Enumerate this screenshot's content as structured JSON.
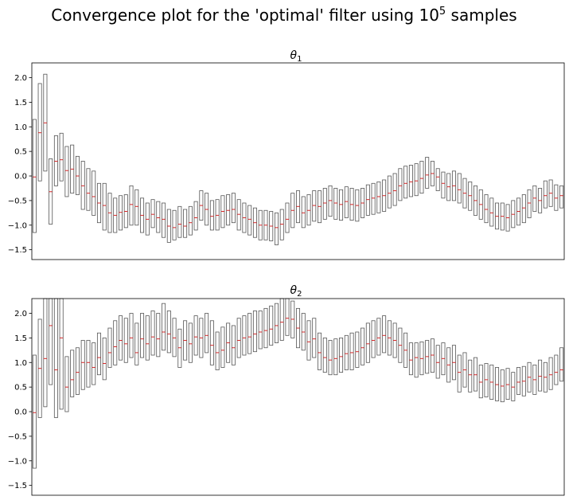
{
  "figure": {
    "title_text": "Convergence plot for the 'optimal' filter using 10",
    "title_sup": "5",
    "title_tail": " samples"
  },
  "chart_data": [
    {
      "type": "box",
      "title": "θ",
      "title_sub": "1",
      "xlabel": "",
      "ylabel": "",
      "ylim": [
        -1.7,
        2.3
      ],
      "yticks": [
        -1.5,
        -1.0,
        -0.5,
        0.0,
        0.5,
        1.0,
        1.5,
        2.0
      ],
      "ytick_labels": [
        "−1.5",
        "−1.0",
        "−0.5",
        "0.0",
        "0.5",
        "1.0",
        "1.5",
        "2.0"
      ],
      "grid": false,
      "medians": [
        -0.02,
        0.88,
        1.08,
        -0.32,
        0.3,
        0.33,
        0.11,
        0.14,
        0.0,
        -0.2,
        -0.35,
        -0.42,
        -0.55,
        -0.6,
        -0.75,
        -0.8,
        -0.74,
        -0.72,
        -0.58,
        -0.62,
        -0.8,
        -0.88,
        -0.78,
        -0.85,
        -0.88,
        -1.02,
        -1.05,
        -0.98,
        -1.02,
        -0.95,
        -0.85,
        -0.6,
        -0.68,
        -0.82,
        -0.8,
        -0.72,
        -0.7,
        -0.68,
        -0.78,
        -0.85,
        -0.88,
        -0.95,
        -1.0,
        -1.0,
        -1.02,
        -1.05,
        -0.98,
        -0.88,
        -0.7,
        -0.62,
        -0.75,
        -0.7,
        -0.6,
        -0.62,
        -0.55,
        -0.5,
        -0.55,
        -0.58,
        -0.52,
        -0.58,
        -0.6,
        -0.55,
        -0.48,
        -0.45,
        -0.42,
        -0.4,
        -0.35,
        -0.3,
        -0.2,
        -0.15,
        -0.12,
        -0.1,
        -0.05,
        0.02,
        0.05,
        -0.02,
        -0.15,
        -0.22,
        -0.2,
        -0.28,
        -0.35,
        -0.4,
        -0.5,
        -0.58,
        -0.68,
        -0.75,
        -0.82,
        -0.82,
        -0.85,
        -0.78,
        -0.72,
        -0.65,
        -0.55,
        -0.45,
        -0.5,
        -0.4,
        -0.35,
        -0.45,
        -0.4
      ],
      "q1": [
        -1.15,
        -0.1,
        0.1,
        -0.98,
        -0.2,
        -0.1,
        -0.42,
        -0.35,
        -0.38,
        -0.68,
        -0.7,
        -0.8,
        -0.95,
        -1.1,
        -1.15,
        -1.15,
        -1.1,
        -1.05,
        -1.0,
        -1.0,
        -1.15,
        -1.2,
        -1.05,
        -1.15,
        -1.25,
        -1.35,
        -1.3,
        -1.25,
        -1.25,
        -1.2,
        -1.1,
        -0.9,
        -1.0,
        -1.1,
        -1.1,
        -1.05,
        -1.0,
        -0.95,
        -1.1,
        -1.15,
        -1.2,
        -1.25,
        -1.3,
        -1.3,
        -1.32,
        -1.4,
        -1.3,
        -1.15,
        -1.05,
        -0.95,
        -1.05,
        -1.0,
        -0.92,
        -0.95,
        -0.88,
        -0.82,
        -0.88,
        -0.9,
        -0.85,
        -0.9,
        -0.92,
        -0.85,
        -0.8,
        -0.78,
        -0.75,
        -0.72,
        -0.65,
        -0.6,
        -0.5,
        -0.45,
        -0.42,
        -0.4,
        -0.35,
        -0.25,
        -0.2,
        -0.3,
        -0.45,
        -0.5,
        -0.5,
        -0.55,
        -0.65,
        -0.7,
        -0.8,
        -0.88,
        -0.95,
        -1.02,
        -1.08,
        -1.1,
        -1.12,
        -1.05,
        -1.0,
        -0.95,
        -0.85,
        -0.72,
        -0.75,
        -0.65,
        -0.62,
        -0.7,
        -0.65
      ],
      "q3": [
        1.15,
        1.88,
        2.07,
        0.35,
        0.82,
        0.87,
        0.6,
        0.63,
        0.4,
        0.3,
        0.15,
        0.1,
        -0.15,
        -0.15,
        -0.35,
        -0.45,
        -0.4,
        -0.38,
        -0.2,
        -0.28,
        -0.45,
        -0.55,
        -0.48,
        -0.52,
        -0.55,
        -0.68,
        -0.7,
        -0.62,
        -0.68,
        -0.62,
        -0.52,
        -0.3,
        -0.35,
        -0.5,
        -0.48,
        -0.4,
        -0.38,
        -0.35,
        -0.48,
        -0.55,
        -0.6,
        -0.65,
        -0.7,
        -0.7,
        -0.72,
        -0.75,
        -0.68,
        -0.55,
        -0.35,
        -0.3,
        -0.42,
        -0.38,
        -0.3,
        -0.3,
        -0.25,
        -0.2,
        -0.25,
        -0.28,
        -0.22,
        -0.25,
        -0.28,
        -0.25,
        -0.18,
        -0.15,
        -0.12,
        -0.08,
        0.0,
        0.05,
        0.15,
        0.2,
        0.22,
        0.25,
        0.3,
        0.38,
        0.3,
        0.15,
        0.08,
        0.05,
        0.1,
        0.05,
        -0.05,
        -0.12,
        -0.2,
        -0.28,
        -0.38,
        -0.45,
        -0.55,
        -0.55,
        -0.58,
        -0.5,
        -0.45,
        -0.38,
        -0.28,
        -0.2,
        -0.25,
        -0.1,
        -0.08,
        -0.18,
        -0.2
      ]
    },
    {
      "type": "box",
      "title": "θ",
      "title_sub": "2",
      "xlabel": "",
      "ylabel": "",
      "ylim": [
        -1.7,
        2.3
      ],
      "yticks": [
        -1.5,
        -1.0,
        -0.5,
        0.0,
        0.5,
        1.0,
        1.5,
        2.0
      ],
      "ytick_labels": [
        "−1.5",
        "−1.0",
        "−0.5",
        "0.0",
        "0.5",
        "1.0",
        "1.5",
        "2.0"
      ],
      "grid": false,
      "medians": [
        -0.02,
        0.88,
        1.08,
        1.75,
        0.85,
        1.5,
        0.5,
        0.65,
        0.8,
        1.0,
        1.0,
        0.9,
        1.1,
        0.98,
        1.2,
        1.32,
        1.45,
        1.38,
        1.5,
        1.2,
        1.48,
        1.38,
        1.52,
        1.48,
        1.62,
        1.58,
        1.5,
        1.3,
        1.45,
        1.38,
        1.52,
        1.5,
        1.55,
        1.35,
        1.2,
        1.25,
        1.4,
        1.3,
        1.45,
        1.5,
        1.52,
        1.58,
        1.62,
        1.65,
        1.68,
        1.75,
        1.82,
        1.9,
        1.88,
        1.7,
        1.62,
        1.42,
        1.48,
        1.2,
        1.1,
        1.05,
        1.08,
        1.12,
        1.18,
        1.2,
        1.22,
        1.3,
        1.38,
        1.45,
        1.5,
        1.55,
        1.5,
        1.45,
        1.35,
        1.25,
        1.05,
        1.1,
        1.08,
        1.12,
        1.15,
        1.0,
        1.08,
        0.95,
        1.0,
        0.8,
        0.85,
        0.75,
        0.75,
        0.6,
        0.65,
        0.6,
        0.55,
        0.52,
        0.55,
        0.5,
        0.6,
        0.62,
        0.7,
        0.65,
        0.72,
        0.7,
        0.75,
        0.8,
        0.85
      ],
      "q1": [
        -1.15,
        -0.12,
        0.1,
        0.55,
        -0.12,
        0.05,
        0.0,
        0.3,
        0.35,
        0.45,
        0.5,
        0.55,
        0.75,
        0.65,
        0.9,
        0.95,
        1.05,
        1.0,
        1.1,
        0.95,
        1.1,
        1.05,
        1.15,
        1.12,
        1.25,
        1.2,
        1.12,
        0.9,
        1.05,
        1.0,
        1.15,
        1.1,
        1.2,
        0.95,
        0.85,
        0.9,
        1.0,
        0.95,
        1.1,
        1.15,
        1.18,
        1.22,
        1.28,
        1.3,
        1.35,
        1.4,
        1.45,
        1.55,
        1.5,
        1.3,
        1.25,
        1.05,
        1.1,
        0.85,
        0.8,
        0.75,
        0.75,
        0.8,
        0.85,
        0.85,
        0.9,
        0.95,
        1.0,
        1.1,
        1.15,
        1.2,
        1.15,
        1.1,
        1.0,
        0.9,
        0.75,
        0.7,
        0.75,
        0.78,
        0.8,
        0.68,
        0.75,
        0.6,
        0.65,
        0.4,
        0.5,
        0.4,
        0.42,
        0.28,
        0.3,
        0.25,
        0.22,
        0.2,
        0.25,
        0.22,
        0.35,
        0.32,
        0.4,
        0.35,
        0.42,
        0.4,
        0.45,
        0.55,
        0.62
      ],
      "q3": [
        1.15,
        1.88,
        2.35,
        2.35,
        2.35,
        2.35,
        1.12,
        1.25,
        1.3,
        1.45,
        1.45,
        1.4,
        1.6,
        1.5,
        1.7,
        1.85,
        1.95,
        1.9,
        2.0,
        1.8,
        2.0,
        1.95,
        2.05,
        2.0,
        2.2,
        2.05,
        1.9,
        1.68,
        1.85,
        1.8,
        1.95,
        1.9,
        2.0,
        1.85,
        1.62,
        1.72,
        1.8,
        1.75,
        1.9,
        1.95,
        2.0,
        2.05,
        2.05,
        2.1,
        2.15,
        2.2,
        2.3,
        2.35,
        2.25,
        2.1,
        2.0,
        1.85,
        1.9,
        1.6,
        1.5,
        1.45,
        1.48,
        1.5,
        1.55,
        1.6,
        1.62,
        1.7,
        1.8,
        1.85,
        1.9,
        1.95,
        1.85,
        1.8,
        1.7,
        1.6,
        1.4,
        1.4,
        1.42,
        1.45,
        1.48,
        1.35,
        1.4,
        1.3,
        1.35,
        1.15,
        1.2,
        1.05,
        1.1,
        0.95,
        0.98,
        0.95,
        0.9,
        0.85,
        0.88,
        0.8,
        0.9,
        0.92,
        1.0,
        0.95,
        1.05,
        1.0,
        1.1,
        1.15,
        1.3
      ]
    }
  ]
}
